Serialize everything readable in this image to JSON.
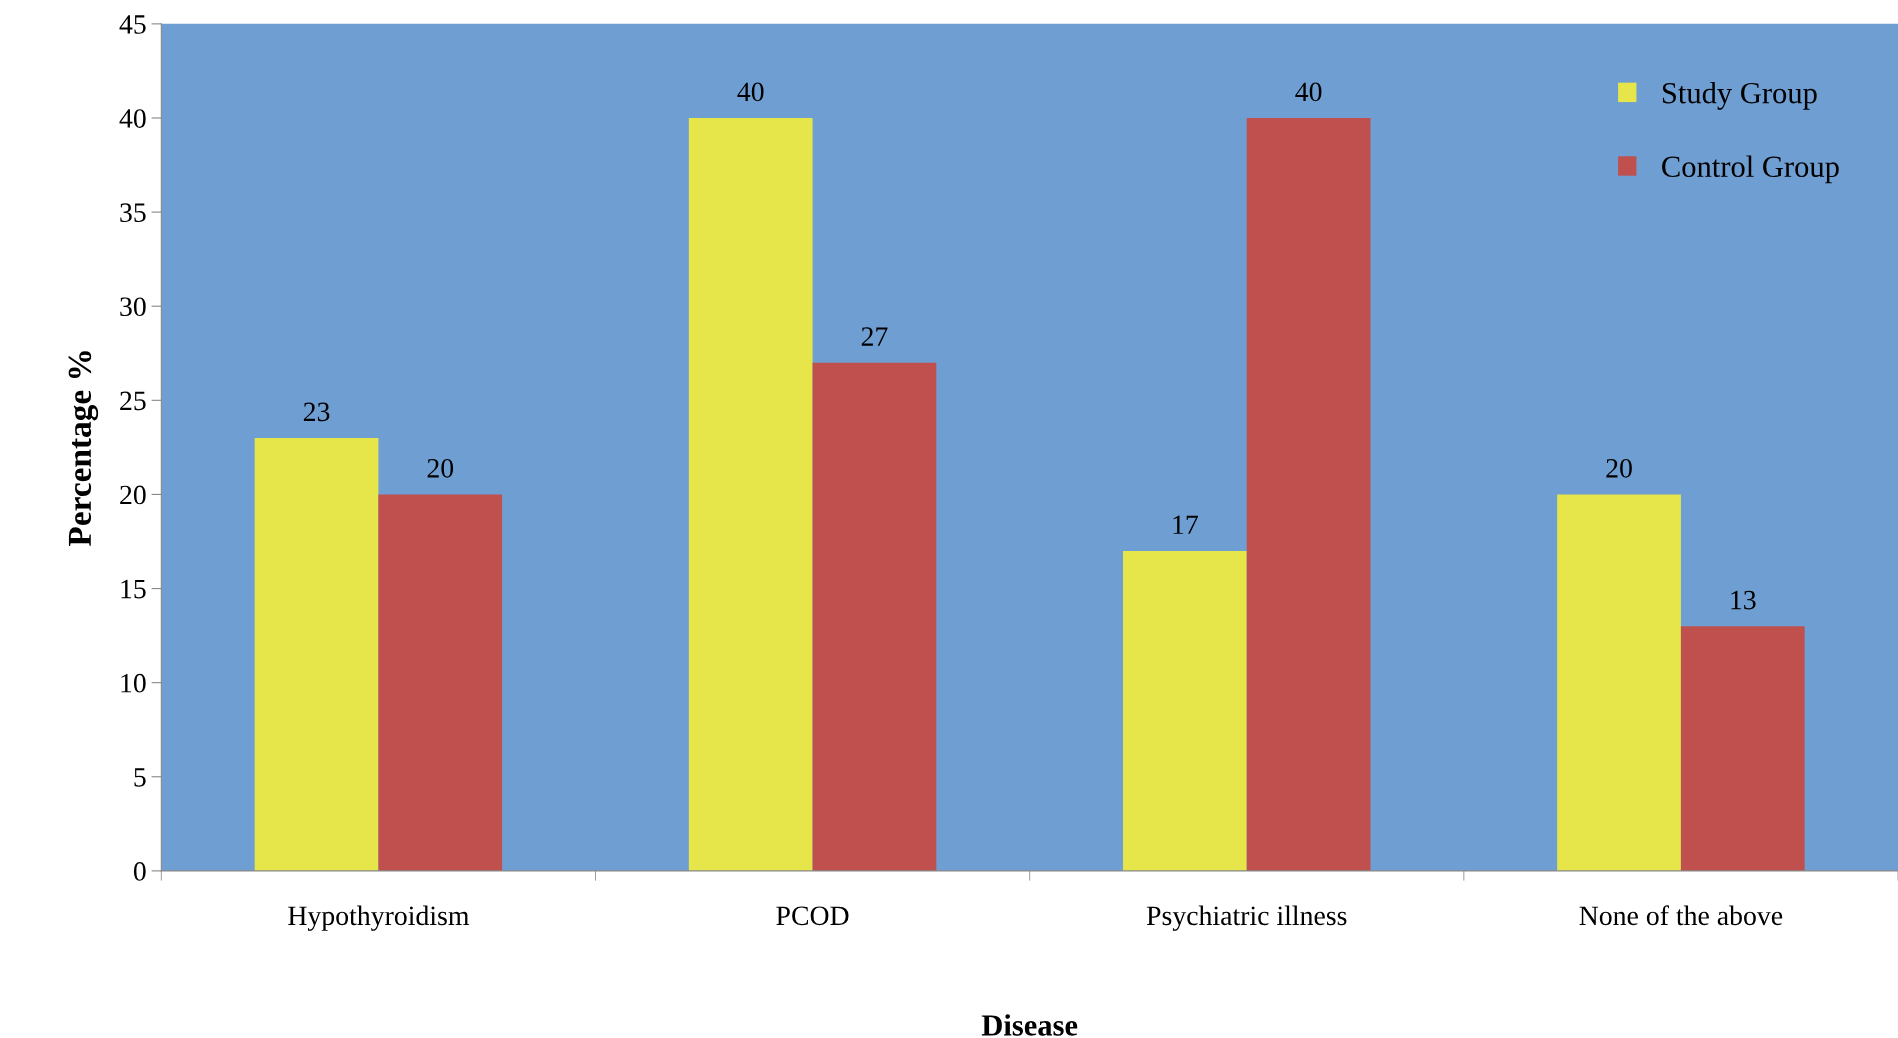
{
  "chart_data": {
    "type": "bar",
    "xlabel": "Disease",
    "ylabel": "Percentage %",
    "categories": [
      "Hypothyroidism",
      "PCOD",
      "Psychiatric illness",
      "None of the above"
    ],
    "series": [
      {
        "name": "Study Group",
        "color": "#e6e64a",
        "values": [
          23,
          40,
          17,
          20
        ]
      },
      {
        "name": "Control Group",
        "color": "#c0504d",
        "values": [
          20,
          27,
          40,
          13
        ]
      }
    ],
    "ylim": [
      0,
      45
    ],
    "yticks": [
      0,
      5,
      10,
      15,
      20,
      25,
      30,
      35,
      40,
      45
    ],
    "data_labels": true,
    "grid": false,
    "legend": "top right"
  }
}
